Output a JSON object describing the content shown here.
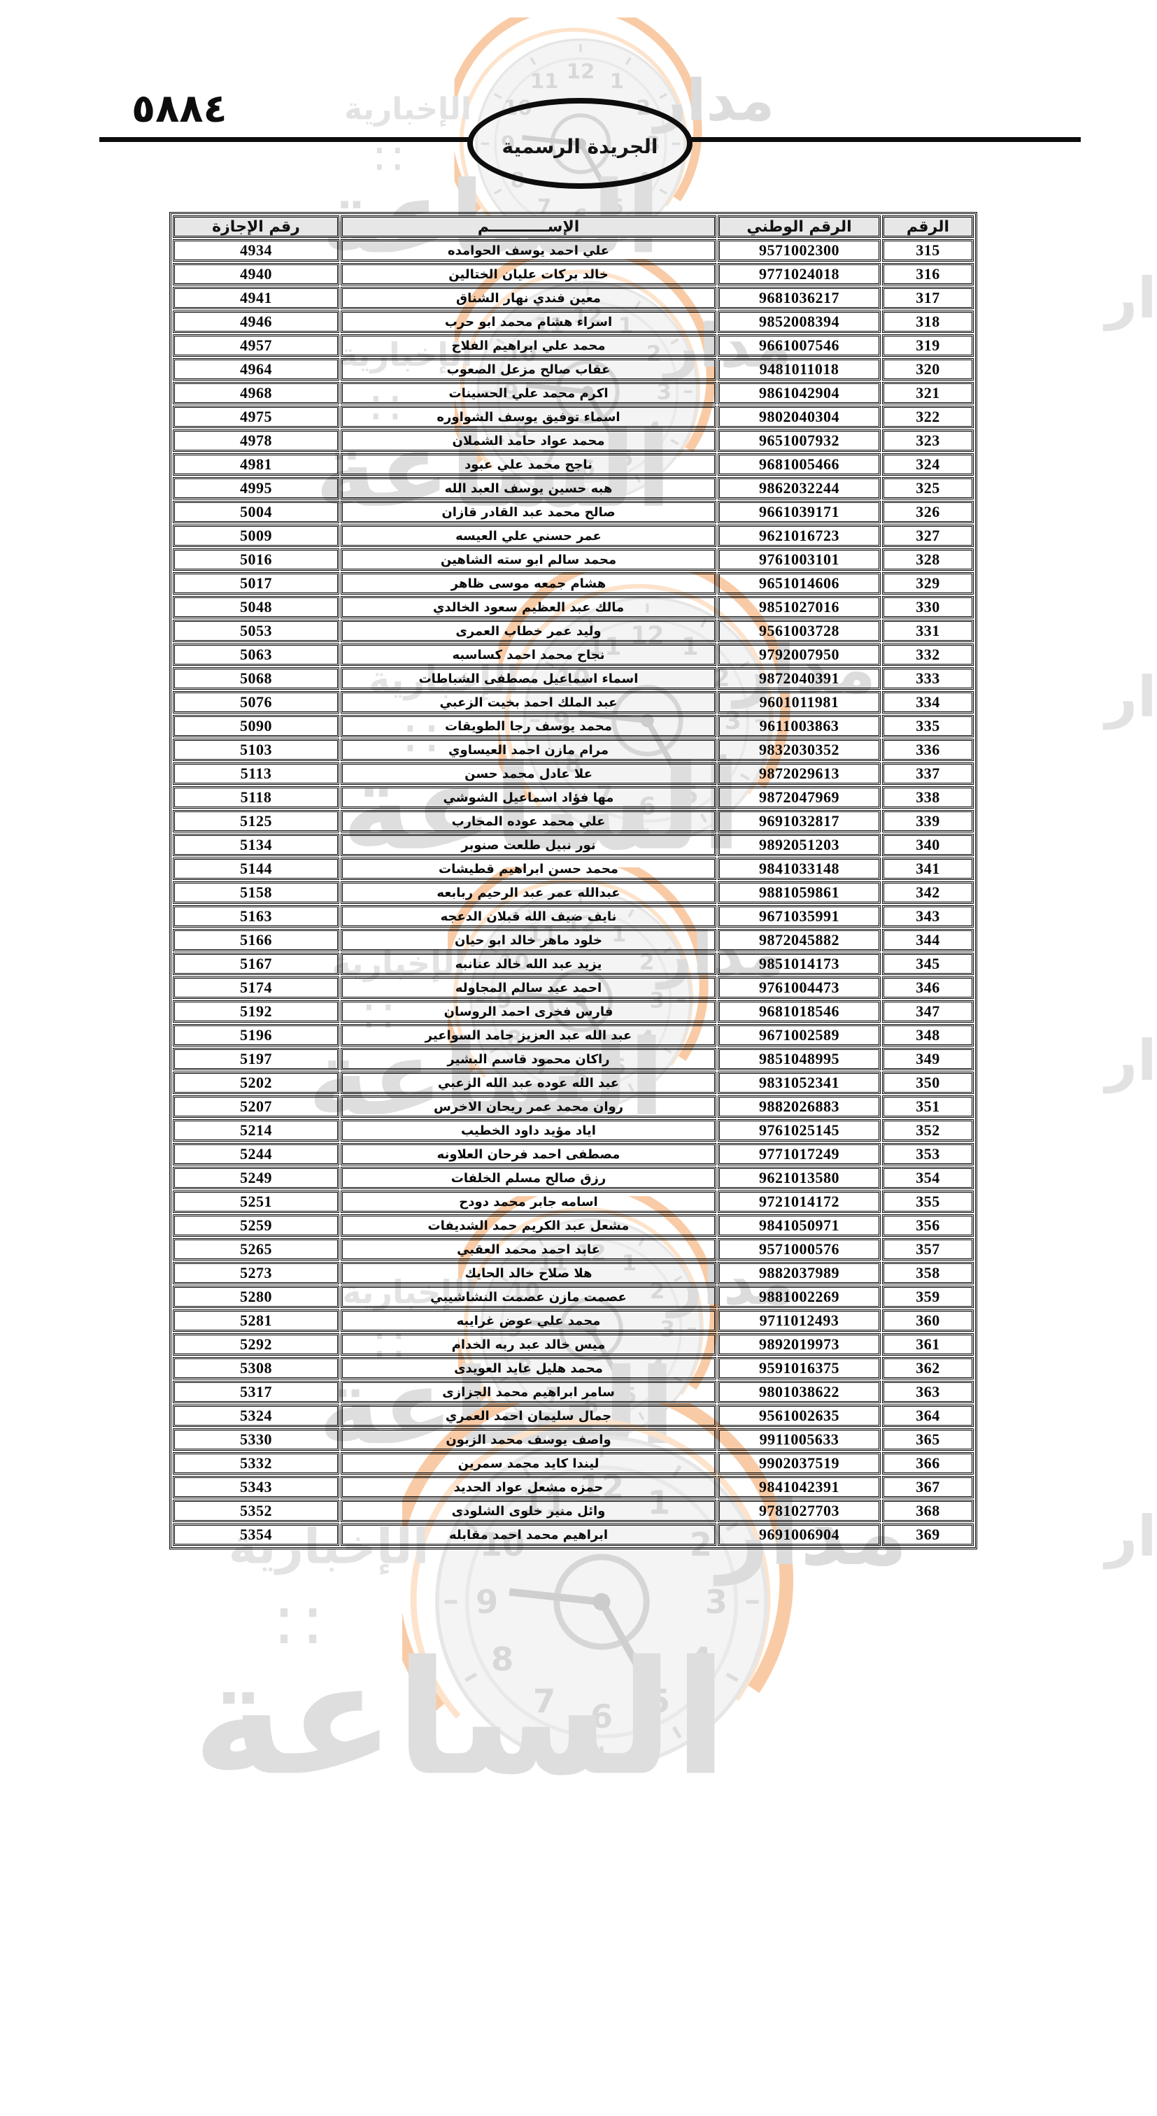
{
  "page": {
    "number_label": "٥٨٨٤"
  },
  "gazette": {
    "title": "الجريدة الرسمية"
  },
  "watermark": {
    "brand": "مدار",
    "brand_big": "الساعة",
    "tagline": "الإخبارية",
    "dots": "∷",
    "accent_color": "#f8cba6",
    "grey_color": "#dddddd",
    "clock_numbers": [
      "12",
      "1",
      "2",
      "3",
      "4",
      "5",
      "6",
      "7",
      "8",
      "9",
      "10",
      "11"
    ]
  },
  "table": {
    "headers": {
      "serial": "الرقم",
      "national_id": "الرقم الوطني",
      "name": "الإســـــــــــم",
      "license": "رقم الإجازة"
    },
    "rows": [
      {
        "serial": "315",
        "national_id": "9571002300",
        "name": "علي احمد يوسف الحوامده",
        "license": "4934"
      },
      {
        "serial": "316",
        "national_id": "9771024018",
        "name": "خالد بركات عليان الختالين",
        "license": "4940"
      },
      {
        "serial": "317",
        "national_id": "9681036217",
        "name": "معين فندي نهار الشناق",
        "license": "4941"
      },
      {
        "serial": "318",
        "national_id": "9852008394",
        "name": "اسراء هشام محمد ابو حرب",
        "license": "4946"
      },
      {
        "serial": "319",
        "national_id": "9661007546",
        "name": "محمد علي ابراهيم الفلاح",
        "license": "4957"
      },
      {
        "serial": "320",
        "national_id": "9481011018",
        "name": "عقاب صالح مزعل الصعوب",
        "license": "4964"
      },
      {
        "serial": "321",
        "national_id": "9861042904",
        "name": "اكرم محمد علي الحسينات",
        "license": "4968"
      },
      {
        "serial": "322",
        "national_id": "9802040304",
        "name": "اسماء توفيق يوسف الشواوره",
        "license": "4975"
      },
      {
        "serial": "323",
        "national_id": "9651007932",
        "name": "محمد عواد حامد الشملان",
        "license": "4978"
      },
      {
        "serial": "324",
        "national_id": "9681005466",
        "name": "ناجح محمد علي عبود",
        "license": "4981"
      },
      {
        "serial": "325",
        "national_id": "9862032244",
        "name": "هبه حسين يوسف العبد الله",
        "license": "4995"
      },
      {
        "serial": "326",
        "national_id": "9661039171",
        "name": "صالح محمد عبد القادر قازان",
        "license": "5004"
      },
      {
        "serial": "327",
        "national_id": "9621016723",
        "name": "عمر حسني علي العيسه",
        "license": "5009"
      },
      {
        "serial": "328",
        "national_id": "9761003101",
        "name": "محمد سالم ابو سته الشاهين",
        "license": "5016"
      },
      {
        "serial": "329",
        "national_id": "9651014606",
        "name": "هشام جمعه موسى ظاهر",
        "license": "5017"
      },
      {
        "serial": "330",
        "national_id": "9851027016",
        "name": "مالك عبد العظيم سعود الخالدي",
        "license": "5048"
      },
      {
        "serial": "331",
        "national_id": "9561003728",
        "name": "وليد عمر خطاب العمرى",
        "license": "5053"
      },
      {
        "serial": "332",
        "national_id": "9792007950",
        "name": "نجاح محمد احمد كساسبه",
        "license": "5063"
      },
      {
        "serial": "333",
        "national_id": "9872040391",
        "name": "اسماء اسماعيل مصطفى الشباطات",
        "license": "5068"
      },
      {
        "serial": "334",
        "national_id": "9601011981",
        "name": "عبد الملك احمد بخيت الزعبي",
        "license": "5076"
      },
      {
        "serial": "335",
        "national_id": "9611003863",
        "name": "محمد يوسف رجا الطويقات",
        "license": "5090"
      },
      {
        "serial": "336",
        "national_id": "9832030352",
        "name": "مرام مازن احمد العيساوي",
        "license": "5103"
      },
      {
        "serial": "337",
        "national_id": "9872029613",
        "name": "علا عادل محمد حسن",
        "license": "5113"
      },
      {
        "serial": "338",
        "national_id": "9872047969",
        "name": "مها فؤاد اسماعيل الشوشي",
        "license": "5118"
      },
      {
        "serial": "339",
        "national_id": "9691032817",
        "name": "علي محمد عوده المحارب",
        "license": "5125"
      },
      {
        "serial": "340",
        "national_id": "9892051203",
        "name": "نور نبيل طلعت صنوبر",
        "license": "5134"
      },
      {
        "serial": "341",
        "national_id": "9841033148",
        "name": "محمد حسن ابراهيم قطيشات",
        "license": "5144"
      },
      {
        "serial": "342",
        "national_id": "9881059861",
        "name": "عبدالله عمر عبد الرحيم ربابعه",
        "license": "5158"
      },
      {
        "serial": "343",
        "national_id": "9671035991",
        "name": "نايف ضيف الله قبلان الدعجه",
        "license": "5163"
      },
      {
        "serial": "344",
        "national_id": "9872045882",
        "name": "خلود ماهر خالد ابو حيان",
        "license": "5166"
      },
      {
        "serial": "345",
        "national_id": "9851014173",
        "name": "يزيد عبد الله خالد عنانبه",
        "license": "5167"
      },
      {
        "serial": "346",
        "national_id": "9761004473",
        "name": "احمد عيد سالم المجاوله",
        "license": "5174"
      },
      {
        "serial": "347",
        "national_id": "9681018546",
        "name": "فارس فخرى احمد الروسان",
        "license": "5192"
      },
      {
        "serial": "348",
        "national_id": "9671002589",
        "name": "عبد الله عبد العزيز حامد السواعير",
        "license": "5196"
      },
      {
        "serial": "349",
        "national_id": "9851048995",
        "name": "راكان محمود قاسم البشير",
        "license": "5197"
      },
      {
        "serial": "350",
        "national_id": "9831052341",
        "name": "عبد الله عوده عبد الله الزعبي",
        "license": "5202"
      },
      {
        "serial": "351",
        "national_id": "9882026883",
        "name": "روان محمد عمر ريحان الاخرس",
        "license": "5207"
      },
      {
        "serial": "352",
        "national_id": "9761025145",
        "name": "اياد مؤيد داود الخطيب",
        "license": "5214"
      },
      {
        "serial": "353",
        "national_id": "9771017249",
        "name": "مصطفى احمد فرحان العلاونه",
        "license": "5244"
      },
      {
        "serial": "354",
        "national_id": "9621013580",
        "name": "رزق صالح مسلم الخلفات",
        "license": "5249"
      },
      {
        "serial": "355",
        "national_id": "9721014172",
        "name": "اسامه جابر محمد دودح",
        "license": "5251"
      },
      {
        "serial": "356",
        "national_id": "9841050971",
        "name": "مشعل عبد الكريم حمد الشديفات",
        "license": "5259"
      },
      {
        "serial": "357",
        "national_id": "9571000576",
        "name": "عابد احمد محمد العقبي",
        "license": "5265"
      },
      {
        "serial": "358",
        "national_id": "9882037989",
        "name": "هلا صلاح خالد الحايك",
        "license": "5273"
      },
      {
        "serial": "359",
        "national_id": "9881002269",
        "name": "عصمت مازن عصمت النشاشيبي",
        "license": "5280"
      },
      {
        "serial": "360",
        "national_id": "9711012493",
        "name": "محمد علي عوض غرايبه",
        "license": "5281"
      },
      {
        "serial": "361",
        "national_id": "9892019973",
        "name": "ميس خالد عبد ربه الخدام",
        "license": "5292"
      },
      {
        "serial": "362",
        "national_id": "9591016375",
        "name": "محمد هليل عايد العويدى",
        "license": "5308"
      },
      {
        "serial": "363",
        "national_id": "9801038622",
        "name": "سامر ابراهيم محمد الجزازى",
        "license": "5317"
      },
      {
        "serial": "364",
        "national_id": "9561002635",
        "name": "جمال سليمان احمد العمري",
        "license": "5324"
      },
      {
        "serial": "365",
        "national_id": "9911005633",
        "name": "واصف يوسف محمد الزبون",
        "license": "5330"
      },
      {
        "serial": "366",
        "national_id": "9902037519",
        "name": "ليندا كايد محمد سمرين",
        "license": "5332"
      },
      {
        "serial": "367",
        "national_id": "9841042391",
        "name": "حمزه مشعل عواد الحديد",
        "license": "5343"
      },
      {
        "serial": "368",
        "national_id": "9781027703",
        "name": "وائل منير خلوى الشلودى",
        "license": "5352"
      },
      {
        "serial": "369",
        "national_id": "9691006904",
        "name": "ابراهيم محمد احمد مقابله",
        "license": "5354"
      }
    ]
  }
}
